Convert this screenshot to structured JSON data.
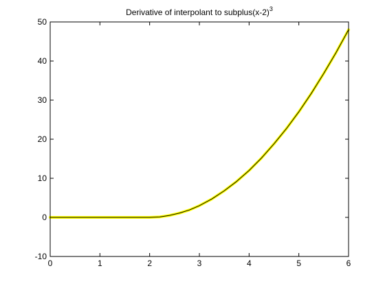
{
  "chart_data": {
    "type": "line",
    "title": "Derivative of interpolant to subplus(x-2)",
    "title_superscript": "3",
    "xlabel": "",
    "ylabel": "",
    "xlim": [
      0,
      6
    ],
    "ylim": [
      -10,
      50
    ],
    "x_ticks": [
      "0",
      "1",
      "2",
      "3",
      "4",
      "5",
      "6"
    ],
    "y_ticks": [
      "-10",
      "0",
      "10",
      "20",
      "30",
      "40",
      "50"
    ],
    "grid": false,
    "legend": "none",
    "series": [
      {
        "line_color": "#000000",
        "highlight_color": "#ffff00",
        "x": [
          0,
          0.5,
          1,
          1.5,
          2,
          2.2,
          2.4,
          2.6,
          2.8,
          3,
          3.25,
          3.5,
          3.75,
          4,
          4.25,
          4.5,
          4.75,
          5,
          5.25,
          5.5,
          5.75,
          6
        ],
        "y": [
          0,
          0,
          0,
          0,
          0,
          0.1,
          0.5,
          1.1,
          1.9,
          3,
          4.7,
          6.8,
          9.2,
          12,
          15.2,
          18.8,
          22.7,
          27,
          31.7,
          36.8,
          42.2,
          48
        ]
      }
    ]
  }
}
